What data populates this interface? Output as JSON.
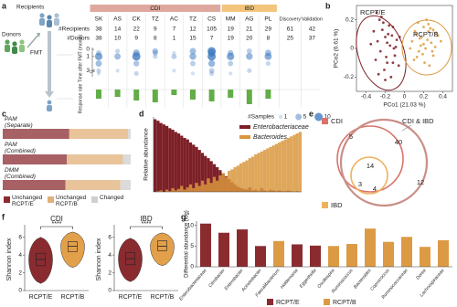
{
  "panel_labels": [
    "a",
    "b",
    "c",
    "d",
    "e",
    "f",
    "g"
  ],
  "chart_data": [
    {
      "type": "cohort",
      "labels": {
        "recipients": "Recipients",
        "donors": "Donors",
        "fmt": "FMT"
      },
      "groups": [
        {
          "name": "CDI",
          "color": "#dfa89e",
          "categories": [
            "SK",
            "AS",
            "CK",
            "TZ",
            "AC",
            "TZ",
            "CS"
          ]
        },
        {
          "name": "IBD",
          "color": "#f3c57c",
          "categories": [
            "MM",
            "AG",
            "PL"
          ]
        }
      ],
      "cohorts": [
        "Discovery",
        "Validation"
      ],
      "cohort_color": "#d6302a",
      "rows": [
        {
          "label": "#Recipients",
          "values": [
            38,
            14,
            22,
            9,
            7,
            12,
            105,
            19,
            21,
            29,
            61,
            42
          ]
        },
        {
          "label": "#Donors",
          "values": [
            38,
            10,
            9,
            8,
            1,
            15,
            7,
            19,
            20,
            8,
            25,
            37
          ]
        }
      ],
      "ylabel": "Time after FMT (month)",
      "ylim": [
        0,
        3.6
      ],
      "yticks": [
        0,
        1,
        3
      ],
      "dot_color": "#3d78c0",
      "points": [
        {
          "t": [
            0.5,
            1,
            2,
            3,
            3.4
          ],
          "n": [
            3,
            8,
            5,
            2,
            1
          ]
        },
        {
          "t": [
            0.25,
            1,
            3
          ],
          "n": [
            2,
            5,
            1
          ]
        },
        {
          "t": [
            0.5,
            1,
            2,
            3.4
          ],
          "n": [
            6,
            10,
            4,
            2
          ]
        },
        {
          "t": [
            0.25,
            0.5,
            1
          ],
          "n": [
            4,
            3,
            2
          ]
        },
        {
          "t": [
            0.5,
            1,
            3
          ],
          "n": [
            1,
            3,
            1
          ]
        },
        {
          "t": [
            0.25,
            1,
            2,
            3.4
          ],
          "n": [
            5,
            6,
            3,
            1
          ]
        },
        {
          "t": [
            0.25,
            0.5,
            1,
            2,
            3,
            3.4
          ],
          "n": [
            10,
            8,
            10,
            6,
            3,
            2
          ]
        },
        {
          "t": [
            0.5,
            1,
            2,
            3.4
          ],
          "n": [
            4,
            8,
            3,
            1
          ]
        },
        {
          "t": [
            0.25,
            1,
            3
          ],
          "n": [
            3,
            6,
            2
          ]
        },
        {
          "t": [
            0.5,
            1,
            2
          ],
          "n": [
            5,
            7,
            2
          ]
        },
        {
          "t": [],
          "n": []
        },
        {
          "t": [],
          "n": []
        }
      ],
      "response_label": "Response rate",
      "response_color": "#62ad48",
      "response": [
        0.5,
        0.4,
        0.6,
        0.7,
        0.3,
        0.55,
        0.65,
        0.45,
        0.8,
        0.5,
        null,
        null
      ],
      "size_legend": {
        "title": "#Samples",
        "values": [
          1,
          5,
          10
        ]
      }
    },
    {
      "type": "scatter",
      "xlabel": "PCo1 (21.03 %)",
      "ylabel": "PCo2 (6.61 %)",
      "xlim": [
        -0.5,
        0.5
      ],
      "ylim": [
        -0.3,
        0.3
      ],
      "xticks": [
        -0.4,
        -0.2,
        0,
        0.2,
        0.4
      ],
      "yticks": [
        -0.2,
        0,
        0.2
      ],
      "series": [
        {
          "name": "RCPT/E",
          "color": "#7d1f27",
          "x": [
            -0.32,
            -0.28,
            -0.25,
            -0.22,
            -0.2,
            -0.18,
            -0.15,
            -0.12,
            -0.1,
            -0.08,
            -0.3,
            -0.26,
            -0.21,
            -0.17,
            -0.14,
            -0.11,
            -0.24,
            -0.19,
            -0.13,
            -0.06,
            -0.35,
            -0.27,
            -0.23,
            -0.16,
            -0.09,
            -0.29,
            -0.2,
            -0.12,
            -0.18,
            -0.05
          ],
          "y": [
            0.12,
            0.05,
            -0.02,
            0.18,
            0.08,
            -0.1,
            0.02,
            0.15,
            -0.05,
            0.06,
            -0.08,
            0.2,
            -0.15,
            0.1,
            -0.2,
            0.0,
            0.22,
            -0.06,
            0.09,
            -0.12,
            0.03,
            -0.18,
            0.13,
            0.16,
            0.01,
            0.25,
            -0.22,
            -0.1,
            0.04,
            0.08
          ]
        },
        {
          "name": "RCPT/B",
          "color": "#dd9a44",
          "x": [
            0.08,
            0.12,
            0.15,
            0.18,
            0.2,
            0.22,
            0.25,
            0.28,
            0.3,
            0.1,
            0.14,
            0.17,
            0.21,
            0.24,
            0.27,
            0.32,
            0.35,
            0.19,
            0.23,
            0.26,
            0.11,
            0.16,
            0.29,
            0.33,
            0.13,
            0.2,
            0.25,
            0.3,
            0.06,
            0.38
          ],
          "y": [
            0.05,
            0.1,
            -0.02,
            0.08,
            0.15,
            0.0,
            0.12,
            0.04,
            -0.05,
            -0.08,
            0.18,
            0.02,
            -0.1,
            0.06,
            0.14,
            0.01,
            0.09,
            -0.04,
            0.2,
            -0.12,
            0.12,
            0.07,
            -0.02,
            0.11,
            -0.06,
            0.03,
            0.17,
            0.13,
            0.0,
            0.05
          ]
        }
      ]
    },
    {
      "type": "stacked_barh",
      "xlim": [
        0,
        100
      ],
      "categories": [
        "PAM (Separate)",
        "PAM (Combined)",
        "DMM (Combined)"
      ],
      "series": [
        {
          "name": "Unchanged RCPT/E",
          "color": "#8a2b30",
          "values": [
            52,
            50,
            49
          ]
        },
        {
          "name": "Unchanged RCPT/B",
          "color": "#e1b07a",
          "values": [
            46,
            44,
            43
          ]
        },
        {
          "name": "Changed",
          "color": "#cfcfcf",
          "values": [
            2,
            6,
            8
          ]
        }
      ]
    },
    {
      "type": "bar_overlay",
      "ylabel": "Relative abundance",
      "ylim": [
        0,
        1
      ],
      "categories": [
        null,
        null,
        null,
        null,
        null,
        null,
        null,
        null,
        null,
        null,
        null,
        null,
        null,
        null,
        null,
        null,
        null,
        null,
        null,
        null,
        null,
        null,
        null,
        null,
        null,
        null,
        null,
        null,
        null,
        null,
        null,
        null,
        null,
        null,
        null,
        null,
        null,
        null,
        null,
        null,
        null,
        null,
        null,
        null,
        null,
        null,
        null,
        null,
        null,
        null
      ],
      "series": [
        {
          "name": "Enterobacteriaceae",
          "color": "#7d1f27",
          "values": [
            0.97,
            0.95,
            0.92,
            0.9,
            0.88,
            0.85,
            0.83,
            0.8,
            0.78,
            0.75,
            0.72,
            0.7,
            0.66,
            0.63,
            0.6,
            0.56,
            0.52,
            0.48,
            0.45,
            0.41,
            0.37,
            0.33,
            0.29,
            0.25,
            0.21,
            0.17,
            0.13,
            0.1,
            0.07,
            0.05,
            0.04,
            0.03,
            0.06,
            0.02,
            0.03,
            0.01,
            0.05,
            0.02,
            0.01,
            0.03,
            0.02,
            0.01,
            0.02,
            0.01,
            0.01,
            0.02,
            0.01,
            0.0,
            0.01,
            0.0
          ]
        },
        {
          "name": "Bacteroides",
          "color": "#d9963c",
          "values": [
            0.0,
            0.01,
            0.02,
            0.0,
            0.03,
            0.01,
            0.05,
            0.02,
            0.04,
            0.08,
            0.03,
            0.06,
            0.1,
            0.05,
            0.12,
            0.08,
            0.15,
            0.1,
            0.18,
            0.12,
            0.2,
            0.15,
            0.22,
            0.25,
            0.2,
            0.28,
            0.3,
            0.33,
            0.35,
            0.38,
            0.4,
            0.42,
            0.45,
            0.47,
            0.5,
            0.52,
            0.54,
            0.56,
            0.58,
            0.6,
            0.62,
            0.64,
            0.66,
            0.68,
            0.7,
            0.72,
            0.74,
            0.76,
            0.78,
            0.8
          ]
        }
      ]
    },
    {
      "type": "venn",
      "sets": [
        {
          "name": "CDI",
          "color": "#d9736b"
        },
        {
          "name": "CDI & IBD",
          "color": "#c98f88"
        },
        {
          "name": "IBD",
          "color": "#efb25c"
        }
      ],
      "values": [
        5,
        40,
        12,
        14,
        3,
        4
      ]
    },
    {
      "type": "violin",
      "title": "CDI",
      "ylabel": "Shannon index",
      "ylim": [
        0,
        7
      ],
      "yticks": [
        0,
        2,
        4,
        6
      ],
      "categories": [
        "RCPT/E",
        "RCPT/B"
      ],
      "colors": [
        "#8a2b30",
        "#e2a04a"
      ],
      "min": [
        0.8,
        2.6
      ],
      "q1": [
        2.8,
        4.4
      ],
      "median": [
        3.5,
        5.0
      ],
      "q3": [
        4.2,
        5.5
      ],
      "max": [
        6.0,
        6.6
      ],
      "annotation": "****"
    },
    {
      "type": "violin",
      "title": "IBD",
      "ylabel": "Shannon index",
      "ylim": [
        0,
        7
      ],
      "yticks": [
        0,
        2,
        4,
        6
      ],
      "categories": [
        "RCPT/E",
        "RCPT/B"
      ],
      "colors": [
        "#8a2b30",
        "#e2a04a"
      ],
      "min": [
        1.0,
        2.8
      ],
      "q1": [
        2.9,
        4.5
      ],
      "median": [
        3.6,
        5.0
      ],
      "q3": [
        4.3,
        5.6
      ],
      "max": [
        5.9,
        6.5
      ],
      "annotation": "****"
    },
    {
      "type": "bar",
      "ylabel": "Differential abundance (log)",
      "ylim": [
        0,
        11
      ],
      "yticks": [
        0,
        5,
        10
      ],
      "categories": [
        "Enterobacteriaceae",
        "Citrobacter",
        "Enterobacter",
        "Acinetobacter",
        "Faecalibacterium",
        "Holdemania",
        "Eggerthella",
        "Oscillospira",
        "Ruminococcus",
        "Bacteroides",
        "Coprococcus",
        "Ruminococcaceae",
        "Dorea",
        "Lachnospiraceae"
      ],
      "series": [
        {
          "name": "RCPT/E",
          "color": "#8a2b30",
          "values": [
            10.4,
            8.2,
            9.0,
            5.0,
            null,
            5.4,
            5.1,
            null,
            null,
            null,
            null,
            null,
            null,
            null
          ]
        },
        {
          "name": "RCPT/B",
          "color": "#dd9a44",
          "values": [
            null,
            null,
            null,
            null,
            6.2,
            null,
            null,
            5.0,
            5.5,
            9.2,
            6.0,
            7.2,
            4.8,
            6.4
          ]
        }
      ]
    }
  ]
}
